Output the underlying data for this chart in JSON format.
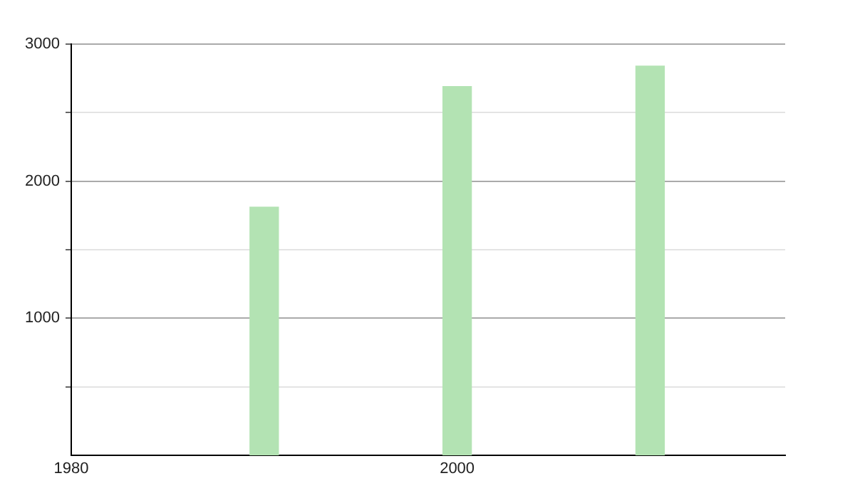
{
  "chart_data": {
    "type": "bar",
    "x": [
      1990,
      2000,
      2010
    ],
    "values": [
      1810,
      2690,
      2840
    ],
    "color": "#b3e3b3",
    "xlim": [
      1980,
      2017
    ],
    "xticks": [
      1980,
      2000
    ],
    "ylim": [
      0,
      3000
    ],
    "yticks": [
      {
        "value": 500,
        "label": null
      },
      1000,
      {
        "value": 1500,
        "label": null
      },
      2000,
      {
        "value": 2500,
        "label": null
      },
      3000
    ],
    "grid": "y",
    "legend": false
  }
}
